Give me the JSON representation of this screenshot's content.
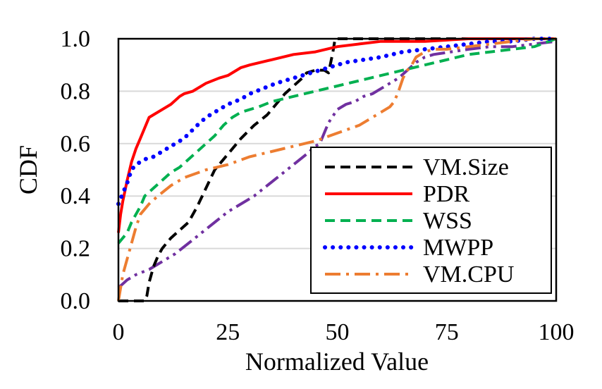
{
  "chart_data": {
    "type": "line",
    "xlabel": "Normalized Value",
    "ylabel": "CDF",
    "xlim": [
      0,
      100
    ],
    "ylim": [
      0,
      1
    ],
    "x_ticks": [
      "0",
      "25",
      "50",
      "75",
      "100"
    ],
    "y_ticks": [
      "0.0",
      "0.2",
      "0.4",
      "0.6",
      "0.8",
      "1.0"
    ],
    "grid": "horizontal",
    "legend_position": "bottom-right",
    "legend": [
      "VM.Size",
      "PDR",
      "WSS",
      "MWPP",
      "VM.CPU"
    ],
    "series": [
      {
        "name": "VM.Size",
        "color": "#000000",
        "dash": "dashed",
        "in_legend": true,
        "points": [
          [
            0,
            0
          ],
          [
            2,
            0
          ],
          [
            4,
            0
          ],
          [
            6,
            0
          ],
          [
            6.5,
            0.02
          ],
          [
            7,
            0.07
          ],
          [
            8,
            0.13
          ],
          [
            9,
            0.17
          ],
          [
            10,
            0.2
          ],
          [
            12,
            0.24
          ],
          [
            14,
            0.27
          ],
          [
            16,
            0.3
          ],
          [
            18,
            0.36
          ],
          [
            20,
            0.43
          ],
          [
            22,
            0.5
          ],
          [
            25,
            0.56
          ],
          [
            28,
            0.62
          ],
          [
            31,
            0.67
          ],
          [
            34,
            0.71
          ],
          [
            36,
            0.75
          ],
          [
            38,
            0.79
          ],
          [
            40,
            0.82
          ],
          [
            42,
            0.85
          ],
          [
            43,
            0.87
          ],
          [
            45,
            0.88
          ],
          [
            47,
            0.88
          ],
          [
            48,
            0.87
          ],
          [
            49,
            0.95
          ],
          [
            49.5,
            1.0
          ],
          [
            55,
            1.0
          ],
          [
            100,
            1.0
          ]
        ]
      },
      {
        "name": "PDR",
        "color": "#ff0000",
        "dash": "solid",
        "in_legend": true,
        "points": [
          [
            0,
            0.26
          ],
          [
            0.5,
            0.33
          ],
          [
            1,
            0.38
          ],
          [
            2,
            0.46
          ],
          [
            3,
            0.53
          ],
          [
            4,
            0.58
          ],
          [
            5,
            0.62
          ],
          [
            6,
            0.66
          ],
          [
            7,
            0.7
          ],
          [
            8,
            0.71
          ],
          [
            10,
            0.73
          ],
          [
            12,
            0.75
          ],
          [
            14,
            0.78
          ],
          [
            15,
            0.79
          ],
          [
            17,
            0.8
          ],
          [
            20,
            0.83
          ],
          [
            23,
            0.85
          ],
          [
            25,
            0.86
          ],
          [
            28,
            0.89
          ],
          [
            30,
            0.9
          ],
          [
            35,
            0.92
          ],
          [
            40,
            0.94
          ],
          [
            45,
            0.95
          ],
          [
            50,
            0.97
          ],
          [
            55,
            0.98
          ],
          [
            60,
            0.99
          ],
          [
            70,
            0.99
          ],
          [
            80,
            1.0
          ],
          [
            100,
            1.0
          ]
        ]
      },
      {
        "name": "WSS",
        "color": "#00b050",
        "dash": "dashed",
        "in_legend": true,
        "points": [
          [
            0,
            0.22
          ],
          [
            1,
            0.24
          ],
          [
            2,
            0.26
          ],
          [
            3,
            0.3
          ],
          [
            4,
            0.33
          ],
          [
            5,
            0.36
          ],
          [
            6,
            0.4
          ],
          [
            8,
            0.43
          ],
          [
            10,
            0.46
          ],
          [
            12,
            0.49
          ],
          [
            14,
            0.51
          ],
          [
            16,
            0.54
          ],
          [
            18,
            0.57
          ],
          [
            20,
            0.6
          ],
          [
            22,
            0.63
          ],
          [
            24,
            0.67
          ],
          [
            26,
            0.7
          ],
          [
            28,
            0.72
          ],
          [
            32,
            0.74
          ],
          [
            35,
            0.76
          ],
          [
            40,
            0.78
          ],
          [
            45,
            0.8
          ],
          [
            50,
            0.82
          ],
          [
            55,
            0.84
          ],
          [
            60,
            0.86
          ],
          [
            65,
            0.88
          ],
          [
            70,
            0.9
          ],
          [
            75,
            0.92
          ],
          [
            80,
            0.94
          ],
          [
            85,
            0.95
          ],
          [
            90,
            0.96
          ],
          [
            95,
            0.97
          ],
          [
            100,
            1.0
          ]
        ]
      },
      {
        "name": "MWPP",
        "color": "#0000ff",
        "dash": "dotted",
        "in_legend": true,
        "points": [
          [
            0,
            0.37
          ],
          [
            1,
            0.41
          ],
          [
            2,
            0.45
          ],
          [
            3,
            0.5
          ],
          [
            4,
            0.52
          ],
          [
            6,
            0.54
          ],
          [
            8,
            0.55
          ],
          [
            10,
            0.57
          ],
          [
            12,
            0.59
          ],
          [
            15,
            0.62
          ],
          [
            18,
            0.67
          ],
          [
            20,
            0.7
          ],
          [
            22,
            0.72
          ],
          [
            25,
            0.75
          ],
          [
            28,
            0.77
          ],
          [
            30,
            0.79
          ],
          [
            33,
            0.81
          ],
          [
            36,
            0.83
          ],
          [
            40,
            0.85
          ],
          [
            44,
            0.87
          ],
          [
            48,
            0.89
          ],
          [
            52,
            0.91
          ],
          [
            56,
            0.92
          ],
          [
            60,
            0.93
          ],
          [
            65,
            0.95
          ],
          [
            70,
            0.96
          ],
          [
            75,
            0.97
          ],
          [
            80,
            0.98
          ],
          [
            85,
            0.99
          ],
          [
            90,
            0.99
          ],
          [
            95,
            1.0
          ],
          [
            100,
            1.0
          ]
        ]
      },
      {
        "name": "VM.CPU",
        "color": "#ed7d31",
        "dash": "dashdot",
        "in_legend": true,
        "points": [
          [
            0,
            0
          ],
          [
            0.5,
            0.05
          ],
          [
            1,
            0.1
          ],
          [
            2,
            0.16
          ],
          [
            3,
            0.22
          ],
          [
            4,
            0.28
          ],
          [
            5,
            0.33
          ],
          [
            6,
            0.35
          ],
          [
            7,
            0.37
          ],
          [
            9,
            0.4
          ],
          [
            12,
            0.44
          ],
          [
            15,
            0.47
          ],
          [
            20,
            0.5
          ],
          [
            25,
            0.52
          ],
          [
            30,
            0.55
          ],
          [
            35,
            0.57
          ],
          [
            40,
            0.59
          ],
          [
            45,
            0.61
          ],
          [
            50,
            0.64
          ],
          [
            55,
            0.67
          ],
          [
            60,
            0.72
          ],
          [
            62,
            0.74
          ],
          [
            63,
            0.76
          ],
          [
            64,
            0.8
          ],
          [
            65,
            0.85
          ],
          [
            66,
            0.88
          ],
          [
            67,
            0.9
          ],
          [
            68,
            0.93
          ],
          [
            70,
            0.95
          ],
          [
            72,
            0.96
          ],
          [
            75,
            0.96
          ],
          [
            80,
            0.97
          ],
          [
            85,
            0.98
          ],
          [
            90,
            0.99
          ],
          [
            95,
            1.0
          ],
          [
            100,
            1.0
          ]
        ]
      },
      {
        "color": "#7030a0",
        "dash": "dashdotdot",
        "in_legend": false,
        "points": [
          [
            0,
            0.05
          ],
          [
            2,
            0.08
          ],
          [
            4,
            0.1
          ],
          [
            7,
            0.12
          ],
          [
            10,
            0.15
          ],
          [
            13,
            0.18
          ],
          [
            16,
            0.22
          ],
          [
            19,
            0.26
          ],
          [
            22,
            0.3
          ],
          [
            25,
            0.34
          ],
          [
            28,
            0.37
          ],
          [
            31,
            0.4
          ],
          [
            34,
            0.44
          ],
          [
            37,
            0.48
          ],
          [
            40,
            0.52
          ],
          [
            43,
            0.56
          ],
          [
            45,
            0.59
          ],
          [
            46,
            0.6
          ],
          [
            47,
            0.64
          ],
          [
            48,
            0.68
          ],
          [
            50,
            0.73
          ],
          [
            52,
            0.75
          ],
          [
            54,
            0.76
          ],
          [
            56,
            0.78
          ],
          [
            58,
            0.79
          ],
          [
            60,
            0.81
          ],
          [
            62,
            0.83
          ],
          [
            64,
            0.85
          ],
          [
            66,
            0.88
          ],
          [
            68,
            0.91
          ],
          [
            70,
            0.93
          ],
          [
            72,
            0.94
          ],
          [
            76,
            0.95
          ],
          [
            80,
            0.96
          ],
          [
            85,
            0.97
          ],
          [
            90,
            0.97
          ],
          [
            95,
            0.98
          ],
          [
            100,
            0.99
          ]
        ]
      }
    ]
  }
}
